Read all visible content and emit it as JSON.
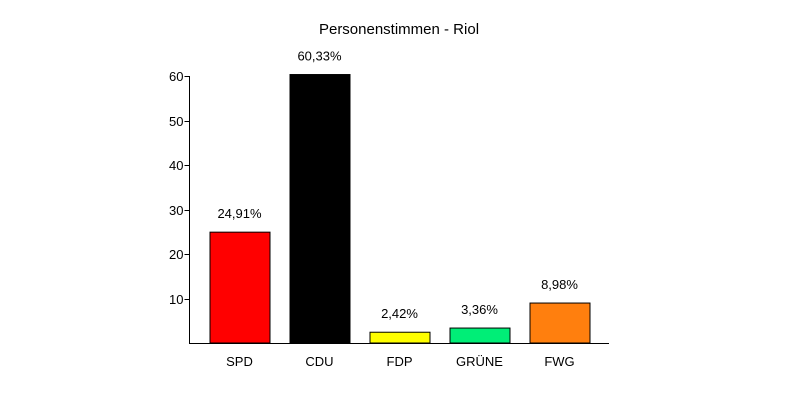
{
  "chart_data": {
    "type": "bar",
    "title": "Personenstimmen - Riol",
    "xlabel": "",
    "ylabel": "",
    "categories": [
      "SPD",
      "CDU",
      "FDP",
      "GRÜNE",
      "FWG"
    ],
    "values": [
      24.91,
      60.33,
      2.42,
      3.36,
      8.98
    ],
    "value_labels": [
      "24,91%",
      "60,33%",
      "2,42%",
      "3,36%",
      "8,98%"
    ],
    "colors": [
      "#ff0000",
      "#000000",
      "#ffff00",
      "#00ee77",
      "#ff7f0e"
    ],
    "ylim": [
      0,
      60
    ],
    "yticks": [
      10,
      20,
      30,
      40,
      50,
      60
    ],
    "ytick_labels": [
      "10",
      "20",
      "30",
      "40",
      "50",
      "60"
    ],
    "grid": false,
    "legend": "none"
  }
}
